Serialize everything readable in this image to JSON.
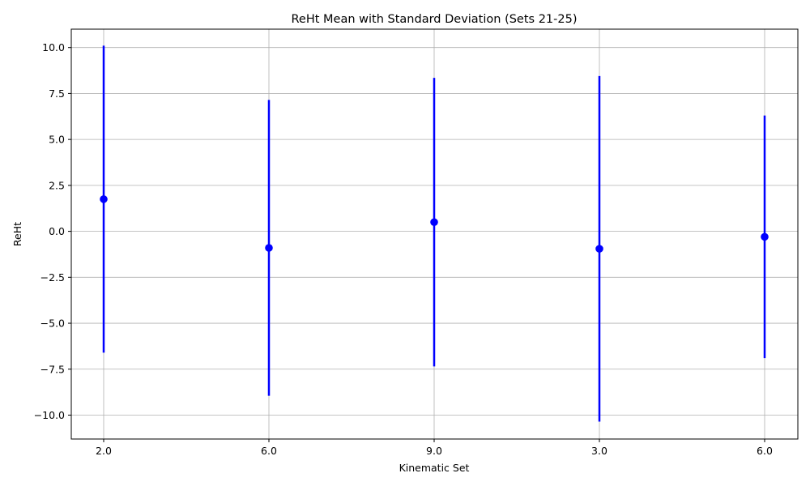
{
  "chart_data": {
    "type": "errorbar",
    "title": "ReHt Mean with Standard Deviation (Sets 21-25)",
    "xlabel": "Kinematic Set",
    "ylabel": "ReHt",
    "categories": [
      "2.0",
      "6.0",
      "9.0",
      "3.0",
      "6.0"
    ],
    "series": [
      {
        "mean": [
          1.75,
          -0.9,
          0.5,
          -0.95,
          -0.3
        ],
        "std": [
          8.35,
          8.05,
          7.85,
          9.4,
          6.6
        ]
      }
    ],
    "ylim": [
      -11.3,
      11.0
    ],
    "yticks": [
      -10.0,
      -7.5,
      -5.0,
      -2.5,
      0.0,
      2.5,
      5.0,
      7.5,
      10.0
    ],
    "ytick_labels": [
      "−10.0",
      "−7.5",
      "−5.0",
      "−2.5",
      "0.0",
      "2.5",
      "5.0",
      "7.5",
      "10.0"
    ],
    "grid": true,
    "color": "#0000ff"
  }
}
